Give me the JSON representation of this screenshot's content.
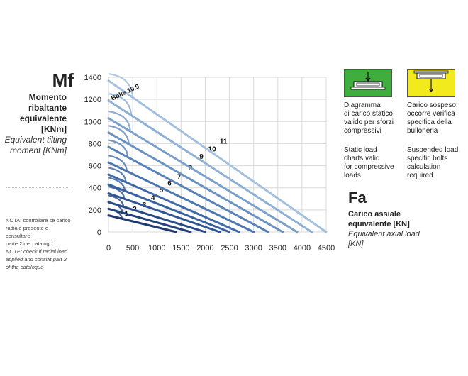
{
  "y_axis_block": {
    "symbol": "Mf",
    "line1": "Momento",
    "line2": "ribaltante",
    "line3": "equivalente",
    "line4": "[KNm]",
    "line5": "Equivalent tilting",
    "line6": "moment [KNm]"
  },
  "x_axis_block": {
    "symbol": "Fa",
    "line1": "Carico assiale",
    "line2": "equivalente [KN]",
    "line3": "Equivalent axial load",
    "line4": "[KN]"
  },
  "note": {
    "it_line1": "NOTA: controllare se carico",
    "it_line2": "radiale presente e consultare",
    "it_line3": "parte 2 del catalogo",
    "en_line1": "NOTE: check if radial load",
    "en_line2": "applied and consult part 2",
    "en_line3": "of the catalogue"
  },
  "legend": {
    "static": {
      "color": "#3fae3f",
      "icon": "compressive-load-diagram-icon",
      "it_line1": "Diagramma",
      "it_line2": "di carico statico",
      "it_line3": "valido per sforzi",
      "it_line4": "compressivi",
      "en_line1": "Static load",
      "en_line2": "charts valid",
      "en_line3": "for compressive",
      "en_line4": "loads"
    },
    "suspended": {
      "color": "#f2ea1d",
      "icon": "suspended-load-diagram-icon",
      "it_line1": "Carico sospeso:",
      "it_line2": "occorre verifica",
      "it_line3": "specifica della",
      "it_line4": "bulloneria",
      "en_line1": "Suspended load:",
      "en_line2": "specific bolts",
      "en_line3": "calculation",
      "en_line4": "required"
    }
  },
  "chart_data": {
    "type": "line",
    "xlim": [
      0,
      4500
    ],
    "ylim": [
      0,
      1400
    ],
    "x_ticks": [
      "0",
      "500",
      "1000",
      "1500",
      "2000",
      "2500",
      "3000",
      "3500",
      "4000",
      "4500"
    ],
    "y_ticks": [
      "0",
      "200",
      "400",
      "600",
      "800",
      "1000",
      "1200",
      "1400"
    ],
    "grid": true,
    "curve_annotation": "Bolts 10.9",
    "series": [
      {
        "name": "1",
        "color": "#1f3a6e",
        "fa_max": 1400,
        "mf_max": 150,
        "bolt_fa": 280,
        "label_at": [
          330,
          145
        ]
      },
      {
        "name": "2",
        "color": "#23427a",
        "fa_max": 1700,
        "mf_max": 210,
        "bolt_fa": 290,
        "label_at": [
          500,
          185
        ]
      },
      {
        "name": "3",
        "color": "#294c86",
        "fa_max": 2000,
        "mf_max": 270,
        "bolt_fa": 310,
        "label_at": [
          700,
          225
        ]
      },
      {
        "name": "4",
        "color": "#2f5692",
        "fa_max": 2300,
        "mf_max": 350,
        "bolt_fa": 330,
        "label_at": [
          880,
          290
        ]
      },
      {
        "name": "5",
        "color": "#37619d",
        "fa_max": 2500,
        "mf_max": 430,
        "bolt_fa": 340,
        "label_at": [
          1050,
          360
        ]
      },
      {
        "name": "6",
        "color": "#406ba6",
        "fa_max": 2700,
        "mf_max": 520,
        "bolt_fa": 360,
        "label_at": [
          1220,
          420
        ]
      },
      {
        "name": "7",
        "color": "#4b76af",
        "fa_max": 3000,
        "mf_max": 630,
        "bolt_fa": 380,
        "label_at": [
          1420,
          480
        ]
      },
      {
        "name": "8",
        "color": "#5882b8",
        "fa_max": 3300,
        "mf_max": 770,
        "bolt_fa": 400,
        "label_at": [
          1650,
          560
        ]
      },
      {
        "name": "9",
        "color": "#6891c2",
        "fa_max": 3600,
        "mf_max": 900,
        "bolt_fa": 420,
        "label_at": [
          1880,
          660
        ]
      },
      {
        "name": "10",
        "color": "#7aa0cb",
        "fa_max": 3900,
        "mf_max": 1030,
        "bolt_fa": 450,
        "label_at": [
          2060,
          730
        ]
      },
      {
        "name": "11",
        "color": "#8db0d4",
        "fa_max": 4200,
        "mf_max": 1190,
        "bolt_fa": 470,
        "label_at": [
          2300,
          800
        ]
      },
      {
        "name": "",
        "color": "#a2c0dd",
        "fa_max": 4500,
        "mf_max": 1370,
        "bolt_fa": 500,
        "label_at": null
      }
    ]
  }
}
